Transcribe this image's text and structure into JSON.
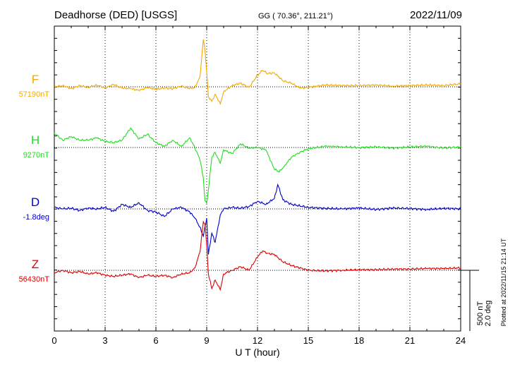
{
  "header": {
    "station": "Deadhorse (DED)  [USGS]",
    "coords": "GG ( 70.36°, 211.21°)",
    "date": "2022/11/09"
  },
  "side_note": "Plotted at 2022/11/15 21:14 UT",
  "scale": {
    "nt": "500 nT",
    "deg": "2.0 deg"
  },
  "colors": {
    "F": "#f5a800",
    "H": "#22dd22",
    "D": "#0000cc",
    "Z": "#dd0000",
    "axis": "#000000",
    "grid": "#000000"
  },
  "chart_data": {
    "type": "line",
    "title": "Deadhorse (DED)  [USGS]",
    "xlabel": "U T (hour)",
    "xlim": [
      0,
      24
    ],
    "xticks": [
      0,
      3,
      6,
      9,
      12,
      15,
      18,
      21,
      24
    ],
    "xtick_labels": [
      "0",
      "3",
      "6",
      "9",
      "12",
      "15",
      "18",
      "21",
      "24"
    ],
    "scale_bar_nT": 500,
    "scale_bar_deg": 2.0,
    "grid": "dotted",
    "series": [
      {
        "name": "F",
        "baseline_label": "57190nT",
        "color": "#f5a800",
        "units": "nT",
        "x": [
          0,
          0.5,
          1,
          1.5,
          2,
          2.5,
          3,
          3.5,
          4,
          4.5,
          5,
          5.5,
          6,
          6.5,
          7,
          7.5,
          8,
          8.3,
          8.6,
          8.8,
          8.9,
          9.0,
          9.1,
          9.3,
          9.5,
          9.8,
          10,
          10.5,
          11,
          11.5,
          12,
          12.3,
          12.6,
          13,
          13.5,
          14,
          14.5,
          15,
          16,
          17,
          18,
          19,
          20,
          21,
          22,
          23,
          24
        ],
        "y": [
          0,
          10,
          -15,
          10,
          -5,
          15,
          -10,
          20,
          -10,
          -15,
          -30,
          -5,
          -20,
          -10,
          -15,
          5,
          -15,
          -5,
          80,
          390,
          300,
          120,
          -80,
          -120,
          -60,
          -140,
          -40,
          10,
          30,
          -5,
          95,
          135,
          110,
          115,
          50,
          30,
          -10,
          -5,
          15,
          10,
          10,
          15,
          5,
          10,
          15,
          10,
          25
        ]
      },
      {
        "name": "H",
        "baseline_label": "9270nT",
        "color": "#22dd22",
        "units": "nT",
        "x": [
          0,
          0.5,
          1,
          1.5,
          2,
          2.5,
          3,
          3.5,
          4,
          4.5,
          5,
          5.5,
          6,
          6.5,
          7,
          7.5,
          8,
          8.3,
          8.6,
          8.8,
          8.9,
          9.0,
          9.1,
          9.3,
          9.5,
          9.8,
          10,
          10.5,
          11,
          11.5,
          12,
          12.5,
          13,
          13.3,
          13.6,
          14,
          14.5,
          15,
          16,
          17,
          18,
          19,
          20,
          21,
          22,
          23,
          24
        ],
        "y": [
          120,
          60,
          90,
          60,
          60,
          80,
          50,
          40,
          60,
          160,
          70,
          110,
          40,
          10,
          60,
          10,
          80,
          0,
          -100,
          -250,
          -440,
          -460,
          -350,
          -80,
          -40,
          -130,
          -20,
          -50,
          30,
          -5,
          0,
          -20,
          -180,
          -200,
          -150,
          -80,
          -40,
          -10,
          10,
          5,
          0,
          5,
          -5,
          5,
          10,
          -5,
          5
        ]
      },
      {
        "name": "D",
        "baseline_label": "-1.8deg",
        "color": "#0000cc",
        "units": "deg",
        "x": [
          0,
          0.5,
          1,
          1.5,
          2,
          2.5,
          3,
          3.5,
          4,
          4.5,
          5,
          5.5,
          6,
          6.5,
          7,
          7.5,
          8,
          8.3,
          8.6,
          8.8,
          9.0,
          9.1,
          9.3,
          9.5,
          9.8,
          10,
          10.5,
          11,
          11.5,
          12,
          12.5,
          13,
          13.2,
          13.5,
          14,
          14.5,
          15,
          16,
          17,
          18,
          19,
          20,
          21,
          22,
          23,
          24
        ],
        "y": [
          0.05,
          0.0,
          0.02,
          -0.05,
          0.03,
          0.0,
          0.05,
          -0.08,
          0.15,
          0.05,
          0.2,
          -0.05,
          -0.1,
          -0.25,
          0.0,
          0.05,
          -0.1,
          -0.3,
          -0.6,
          -0.9,
          -0.3,
          -1.5,
          -0.8,
          -1.1,
          -0.2,
          0.0,
          0.05,
          0.02,
          0.08,
          0.25,
          0.15,
          0.35,
          0.8,
          0.3,
          0.15,
          0.1,
          0.05,
          0.02,
          0.0,
          0.03,
          -0.02,
          0.03,
          0.01,
          -0.02,
          0.02,
          0.0
        ]
      },
      {
        "name": "Z",
        "baseline_label": "56430nT",
        "color": "#dd0000",
        "units": "nT",
        "x": [
          0,
          0.5,
          1,
          1.5,
          2,
          2.5,
          3,
          3.5,
          4,
          4.5,
          5,
          5.5,
          6,
          6.5,
          7,
          7.5,
          8,
          8.3,
          8.6,
          8.8,
          8.9,
          9.0,
          9.1,
          9.3,
          9.5,
          9.8,
          10,
          10.5,
          11,
          11.5,
          12,
          12.3,
          12.6,
          13,
          13.5,
          14,
          14.5,
          15,
          16,
          17,
          18,
          19,
          20,
          21,
          22,
          23,
          24
        ],
        "y": [
          -20,
          0,
          -20,
          -10,
          -30,
          -20,
          -40,
          -50,
          -40,
          -30,
          -60,
          -40,
          -50,
          -40,
          -60,
          -30,
          -20,
          20,
          150,
          400,
          380,
          200,
          -30,
          -150,
          -80,
          -160,
          -30,
          0,
          30,
          0,
          110,
          160,
          140,
          130,
          70,
          40,
          20,
          0,
          -5,
          0,
          5,
          5,
          10,
          10,
          15,
          15,
          20
        ]
      }
    ]
  }
}
